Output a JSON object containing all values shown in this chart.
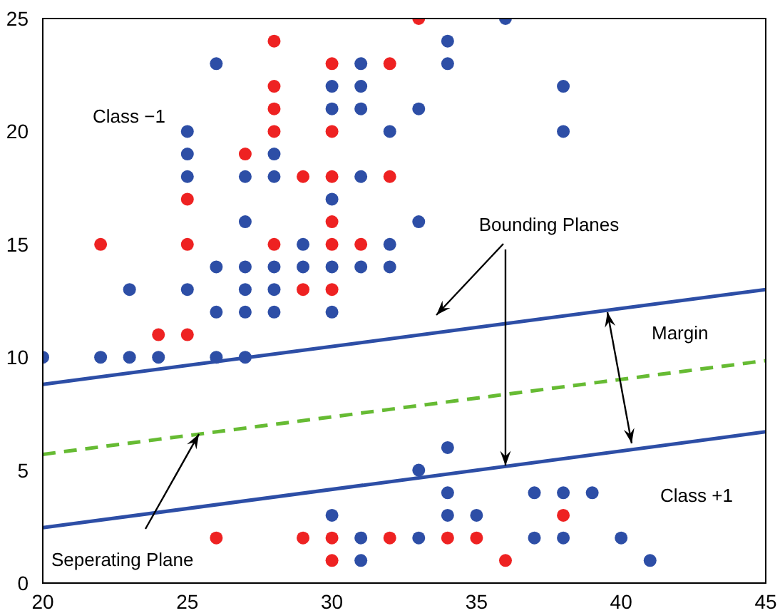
{
  "chart_data": {
    "type": "scatter",
    "xlim": [
      20,
      45
    ],
    "xticks": [
      20,
      25,
      30,
      35,
      40,
      45
    ],
    "ylim": [
      0,
      25
    ],
    "yticks": [
      0,
      5,
      10,
      15,
      20,
      25
    ],
    "series": [
      {
        "marker": "circle",
        "color": "#2d4ea6",
        "x": [
          20,
          22,
          23,
          23,
          24,
          25,
          25,
          25,
          25,
          26,
          26,
          26,
          26,
          27,
          27,
          27,
          27,
          27,
          27,
          28,
          28,
          28,
          28,
          28,
          29,
          29,
          30,
          30,
          30,
          30,
          30,
          31,
          31,
          31,
          31,
          31,
          32,
          32,
          32,
          33,
          33,
          34,
          34,
          36,
          38,
          38,
          30,
          31,
          31,
          33,
          33,
          34,
          34,
          34,
          35,
          37,
          37,
          38,
          38,
          39,
          40,
          41
        ],
        "values": [
          10,
          10,
          13,
          10,
          10,
          20,
          19,
          18,
          13,
          23,
          14,
          12,
          10,
          18,
          16,
          14,
          13,
          12,
          10,
          19,
          18,
          14,
          13,
          12,
          15,
          14,
          22,
          21,
          17,
          14,
          12,
          23,
          22,
          21,
          18,
          14,
          20,
          15,
          14,
          21,
          16,
          24,
          23,
          25,
          22,
          20,
          3,
          2,
          1,
          5,
          2,
          6,
          4,
          3,
          3,
          4,
          2,
          4,
          2,
          4,
          2,
          1
        ]
      },
      {
        "marker": "circle",
        "color": "#ee2222",
        "x": [
          22,
          24,
          25,
          25,
          25,
          27,
          28,
          28,
          28,
          28,
          28,
          29,
          29,
          30,
          30,
          30,
          30,
          30,
          30,
          31,
          32,
          32,
          33,
          26,
          29,
          30,
          30,
          32,
          34,
          35,
          36,
          38
        ],
        "values": [
          15,
          11,
          17,
          15,
          11,
          19,
          24,
          22,
          21,
          20,
          15,
          18,
          13,
          23,
          20,
          18,
          16,
          15,
          13,
          15,
          23,
          18,
          25,
          2,
          2,
          2,
          1,
          2,
          2,
          2,
          1,
          3
        ]
      },
      {
        "type": "line",
        "color": "#2d4ea6",
        "line_style": "solid",
        "x": [
          20,
          45
        ],
        "values": [
          8.8,
          13.0
        ]
      },
      {
        "type": "line",
        "color": "#66bb33",
        "line_style": "dashed",
        "x": [
          20,
          45
        ],
        "values": [
          5.7,
          9.85
        ]
      },
      {
        "type": "line",
        "color": "#2d4ea6",
        "line_style": "solid",
        "x": [
          20,
          45
        ],
        "values": [
          2.45,
          6.7
        ]
      }
    ],
    "annotations": [
      "Class −1",
      {
        "text": "Bounding Planes",
        "x": 36,
        "y": 5.2
      },
      "Margin",
      "Class +1",
      {
        "text": "Seperating Plane",
        "x": 25.4,
        "y": 6.6
      }
    ]
  }
}
